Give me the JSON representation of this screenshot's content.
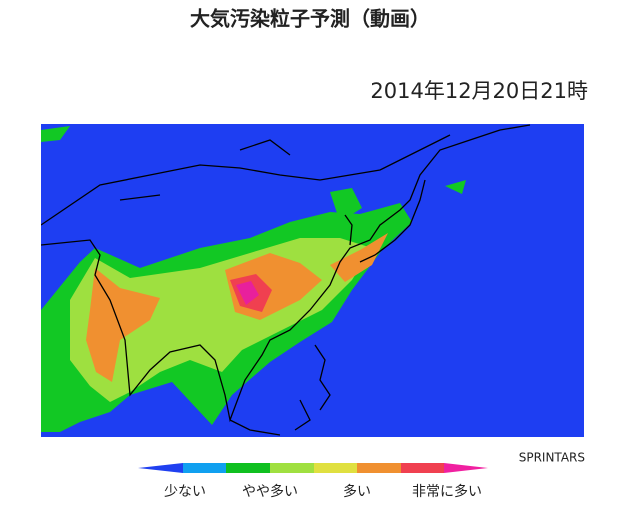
{
  "header": {
    "title": "大気汚染粒子予測（動画）",
    "timestamp": "2014年12月20日21時"
  },
  "map": {
    "credit": "SPRINTARS"
  },
  "legend": {
    "labels": [
      "少ない",
      "やや多い",
      "多い",
      "非常に多い"
    ]
  }
}
